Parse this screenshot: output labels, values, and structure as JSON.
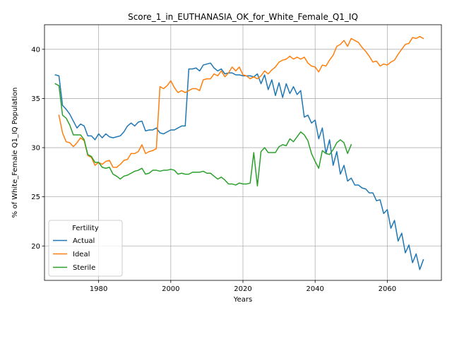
{
  "chart_data": {
    "type": "line",
    "title": "Score_1_in_EUTHANASIA_OK_for_White_Female_Q1_IQ",
    "xlabel": "Years",
    "ylabel": "% of White_Female Q1_IQ Population",
    "xlim": [
      1965,
      2075
    ],
    "ylim": [
      16.5,
      42.5
    ],
    "xticks": [
      1980,
      2000,
      2020,
      2040,
      2060
    ],
    "yticks": [
      20,
      25,
      30,
      35,
      40
    ],
    "grid": true,
    "legend": {
      "title": "Fertility",
      "placement": "lower-left"
    },
    "series": [
      {
        "name": "Actual",
        "color": "#1f77b4",
        "x": [
          1968,
          1969,
          1970,
          1971,
          1972,
          1973,
          1974,
          1975,
          1976,
          1977,
          1978,
          1979,
          1980,
          1981,
          1982,
          1983,
          1984,
          1985,
          1986,
          1987,
          1988,
          1989,
          1990,
          1991,
          1992,
          1993,
          1994,
          1995,
          1996,
          1997,
          1998,
          1999,
          2000,
          2001,
          2002,
          2003,
          2004,
          2005,
          2006,
          2007,
          2008,
          2009,
          2010,
          2011,
          2012,
          2013,
          2014,
          2015,
          2016,
          2017,
          2018,
          2019,
          2020,
          2021,
          2022,
          2023,
          2024,
          2025,
          2026,
          2027,
          2028,
          2029,
          2030,
          2031,
          2032,
          2033,
          2034,
          2035,
          2036,
          2037,
          2038,
          2039,
          2040,
          2041,
          2042,
          2043,
          2044,
          2045,
          2046,
          2047,
          2048,
          2049,
          2050,
          2051,
          2052,
          2053,
          2054,
          2055,
          2056,
          2057,
          2058,
          2059,
          2060,
          2061,
          2062,
          2063,
          2064,
          2065,
          2066,
          2067,
          2068,
          2069,
          2070
        ],
        "values": [
          37.4,
          37.3,
          34.3,
          33.9,
          33.4,
          32.7,
          32.0,
          32.4,
          32.2,
          31.2,
          31.2,
          30.8,
          31.4,
          31.0,
          31.4,
          31.1,
          31.0,
          31.1,
          31.2,
          31.6,
          32.2,
          32.5,
          32.2,
          32.6,
          32.7,
          31.7,
          31.8,
          31.8,
          32.0,
          31.5,
          31.4,
          31.6,
          31.8,
          31.8,
          32.0,
          32.2,
          32.2,
          38.0,
          38.0,
          38.1,
          37.8,
          38.4,
          38.5,
          38.6,
          38.1,
          37.8,
          38.0,
          37.5,
          37.6,
          37.6,
          37.4,
          37.4,
          37.3,
          37.3,
          37.3,
          37.2,
          37.5,
          36.5,
          37.4,
          35.9,
          36.9,
          35.3,
          36.6,
          35.1,
          36.5,
          35.5,
          36.2,
          35.4,
          35.8,
          33.1,
          33.3,
          32.5,
          32.8,
          30.9,
          32.0,
          29.4,
          30.8,
          28.2,
          29.6,
          27.3,
          28.2,
          26.6,
          26.9,
          26.2,
          26.2,
          25.9,
          25.8,
          25.4,
          25.4,
          24.6,
          24.7,
          23.3,
          23.7,
          21.8,
          22.6,
          20.5,
          21.3,
          19.3,
          20.1,
          18.3,
          19.2,
          17.6,
          18.6
        ]
      },
      {
        "name": "Ideal",
        "color": "#ff7f0e",
        "x": [
          1969,
          1970,
          1971,
          1972,
          1973,
          1974,
          1975,
          1976,
          1977,
          1978,
          1979,
          1980,
          1981,
          1982,
          1983,
          1984,
          1985,
          1986,
          1987,
          1988,
          1989,
          1990,
          1991,
          1992,
          1993,
          1994,
          1995,
          1996,
          1997,
          1998,
          1999,
          2000,
          2001,
          2002,
          2003,
          2004,
          2005,
          2006,
          2007,
          2008,
          2009,
          2010,
          2011,
          2012,
          2013,
          2014,
          2015,
          2016,
          2017,
          2018,
          2019,
          2020,
          2021,
          2022,
          2023,
          2024,
          2025,
          2026,
          2027,
          2028,
          2029,
          2030,
          2031,
          2032,
          2033,
          2034,
          2035,
          2036,
          2037,
          2038,
          2039,
          2040,
          2041,
          2042,
          2043,
          2044,
          2045,
          2046,
          2047,
          2048,
          2049,
          2050,
          2051,
          2052,
          2053,
          2054,
          2055,
          2056,
          2057,
          2058,
          2059,
          2060,
          2061,
          2062,
          2063,
          2064,
          2065,
          2066,
          2067,
          2068,
          2069,
          2070
        ],
        "values": [
          33.3,
          31.5,
          30.6,
          30.5,
          30.1,
          30.5,
          31.0,
          30.7,
          29.2,
          29.0,
          28.2,
          28.5,
          28.3,
          28.6,
          28.7,
          28.0,
          28.0,
          28.3,
          28.7,
          28.8,
          29.4,
          29.4,
          29.6,
          30.3,
          29.4,
          29.6,
          29.7,
          29.9,
          36.2,
          36.0,
          36.3,
          36.8,
          36.1,
          35.6,
          35.8,
          35.6,
          35.8,
          36.0,
          36.0,
          35.8,
          36.9,
          37.0,
          37.0,
          37.5,
          37.3,
          37.8,
          37.2,
          37.6,
          38.2,
          37.8,
          38.2,
          37.4,
          37.3,
          37.0,
          37.2,
          37.0,
          37.3,
          37.8,
          37.5,
          37.9,
          38.2,
          38.7,
          38.9,
          39.0,
          39.3,
          39.0,
          39.2,
          39.0,
          39.2,
          38.6,
          38.3,
          38.2,
          37.7,
          38.4,
          38.3,
          38.9,
          39.4,
          40.3,
          40.5,
          40.9,
          40.3,
          41.1,
          40.9,
          40.7,
          40.2,
          39.8,
          39.3,
          38.7,
          38.8,
          38.3,
          38.5,
          38.4,
          38.7,
          38.9,
          39.5,
          40.0,
          40.5,
          40.6,
          41.2,
          41.1,
          41.3,
          41.1
        ]
      },
      {
        "name": "Sterile",
        "color": "#2ca02c",
        "x": [
          1968,
          1969,
          1970,
          1971,
          1972,
          1973,
          1974,
          1975,
          1976,
          1977,
          1978,
          1979,
          1980,
          1981,
          1982,
          1983,
          1984,
          1985,
          1986,
          1987,
          1988,
          1989,
          1990,
          1991,
          1992,
          1993,
          1994,
          1995,
          1996,
          1997,
          1998,
          1999,
          2000,
          2001,
          2002,
          2003,
          2004,
          2005,
          2006,
          2007,
          2008,
          2009,
          2010,
          2011,
          2012,
          2013,
          2014,
          2015,
          2016,
          2017,
          2018,
          2019,
          2020,
          2021,
          2022,
          2023,
          2024,
          2025,
          2026,
          2027,
          2028,
          2029,
          2030,
          2031,
          2032,
          2033,
          2034,
          2035,
          2036,
          2037,
          2038,
          2039,
          2040,
          2041,
          2042,
          2043,
          2044,
          2045,
          2046,
          2047,
          2048,
          2049,
          2050
        ],
        "values": [
          36.5,
          36.3,
          33.3,
          33.0,
          32.3,
          31.3,
          31.3,
          31.3,
          30.8,
          29.3,
          29.1,
          28.5,
          28.5,
          28.0,
          27.9,
          28.0,
          27.3,
          27.1,
          26.8,
          27.1,
          27.2,
          27.4,
          27.6,
          27.7,
          27.9,
          27.3,
          27.4,
          27.7,
          27.7,
          27.6,
          27.7,
          27.7,
          27.8,
          27.7,
          27.3,
          27.4,
          27.3,
          27.3,
          27.5,
          27.5,
          27.5,
          27.6,
          27.4,
          27.4,
          27.1,
          26.8,
          27.0,
          26.7,
          26.3,
          26.3,
          26.2,
          26.4,
          26.3,
          26.3,
          26.4,
          29.5,
          26.1,
          29.6,
          30.0,
          29.5,
          29.5,
          29.5,
          30.1,
          30.3,
          30.2,
          30.9,
          30.6,
          31.1,
          31.6,
          31.3,
          30.7,
          29.4,
          28.6,
          27.9,
          29.7,
          29.4,
          29.3,
          29.8,
          30.5,
          30.8,
          30.5,
          29.4,
          30.3
        ]
      }
    ]
  }
}
